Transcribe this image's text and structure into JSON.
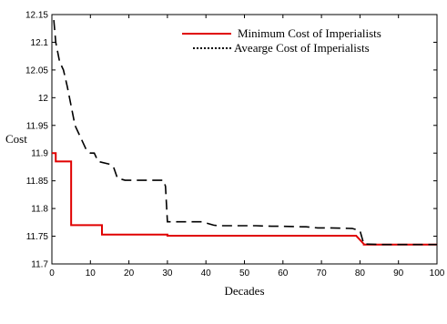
{
  "chart_data": {
    "type": "line",
    "title": "",
    "xlabel": "Decades",
    "ylabel": "Cost",
    "xlim": [
      0,
      100
    ],
    "ylim": [
      11.7,
      12.15
    ],
    "xticks": [
      "0",
      "10",
      "20",
      "30",
      "40",
      "50",
      "60",
      "70",
      "80",
      "90",
      "100"
    ],
    "yticks": [
      "11.7",
      "11.75",
      "11.8",
      "11.85",
      "11.9",
      "11.95",
      "12",
      "12.05",
      "12.1",
      "12.15"
    ],
    "grid": false,
    "legend_position": "top-right",
    "series": [
      {
        "name": "Minimum Cost of Imperialists",
        "color": "#e00000",
        "style": "solid",
        "x": [
          0,
          1,
          1,
          5,
          5,
          13,
          13,
          30,
          30,
          79,
          81,
          81,
          100
        ],
        "y": [
          11.9,
          11.9,
          11.885,
          11.885,
          11.77,
          11.77,
          11.753,
          11.753,
          11.751,
          11.751,
          11.736,
          11.735,
          11.735
        ]
      },
      {
        "name": "Avearge Cost of Imperialists",
        "color": "#000000",
        "style": "dashed",
        "x": [
          0.5,
          1,
          2,
          3,
          4,
          6,
          9,
          10,
          11,
          12,
          15,
          16,
          17,
          18,
          19,
          25,
          29,
          29.5,
          30,
          31,
          39,
          42,
          43,
          48,
          53,
          57,
          59,
          65,
          66,
          69,
          72,
          78,
          80,
          81,
          85,
          90,
          100
        ],
        "y": [
          12.14,
          12.1,
          12.065,
          12.05,
          12.02,
          11.95,
          11.905,
          11.9,
          11.9,
          11.885,
          11.88,
          11.875,
          11.855,
          11.853,
          11.851,
          11.851,
          11.851,
          11.84,
          11.776,
          11.776,
          11.776,
          11.77,
          11.769,
          11.769,
          11.769,
          11.768,
          11.768,
          11.767,
          11.767,
          11.765,
          11.765,
          11.764,
          11.76,
          11.736,
          11.735,
          11.735,
          11.735
        ]
      }
    ]
  }
}
